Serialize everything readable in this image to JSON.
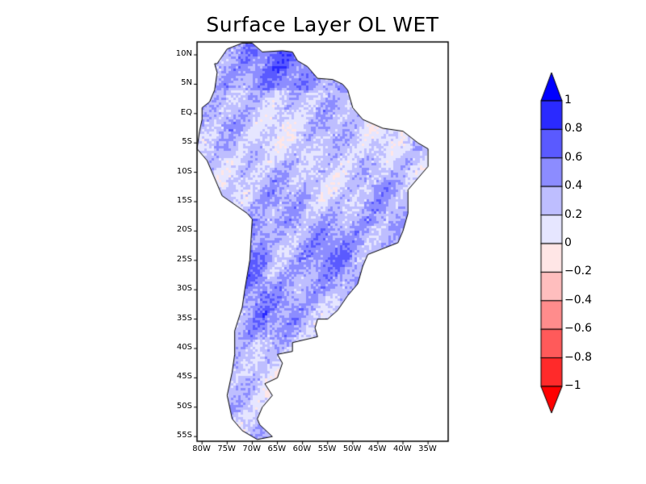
{
  "title": "Surface Layer OL WET",
  "map": {
    "region": "South America",
    "lon_range": [
      -81,
      -31
    ],
    "lat_range": [
      -55.8,
      12.2
    ],
    "x_ticks": [
      {
        "lon": -80,
        "label": "80W"
      },
      {
        "lon": -75,
        "label": "75W"
      },
      {
        "lon": -70,
        "label": "70W"
      },
      {
        "lon": -65,
        "label": "65W"
      },
      {
        "lon": -60,
        "label": "60W"
      },
      {
        "lon": -55,
        "label": "55W"
      },
      {
        "lon": -50,
        "label": "50W"
      },
      {
        "lon": -45,
        "label": "45W"
      },
      {
        "lon": -40,
        "label": "40W"
      },
      {
        "lon": -35,
        "label": "35W"
      }
    ],
    "y_ticks": [
      {
        "lat": 10,
        "label": "10N"
      },
      {
        "lat": 5,
        "label": "5N"
      },
      {
        "lat": 0,
        "label": "EQ"
      },
      {
        "lat": -5,
        "label": "5S"
      },
      {
        "lat": -10,
        "label": "10S"
      },
      {
        "lat": -15,
        "label": "15S"
      },
      {
        "lat": -20,
        "label": "20S"
      },
      {
        "lat": -25,
        "label": "25S"
      },
      {
        "lat": -30,
        "label": "30S"
      },
      {
        "lat": -35,
        "label": "35S"
      },
      {
        "lat": -40,
        "label": "40S"
      },
      {
        "lat": -45,
        "label": "45S"
      },
      {
        "lat": -50,
        "label": "50S"
      },
      {
        "lat": -55,
        "label": "55S"
      }
    ]
  },
  "colorbar": {
    "labels": [
      "1",
      "0.8",
      "0.6",
      "0.4",
      "0.2",
      "0",
      "−0.2",
      "−0.4",
      "−0.6",
      "−0.8",
      "−1"
    ],
    "top_arrow_color": "#0000ff",
    "bottom_arrow_color": "#ff0000",
    "bins": [
      "#2a2aff",
      "#5a5aff",
      "#8c8cff",
      "#bebeff",
      "#e6e6ff",
      "#ffe6e6",
      "#ffbebe",
      "#ff8c8c",
      "#ff5a5a",
      "#ff2a2a"
    ]
  }
}
